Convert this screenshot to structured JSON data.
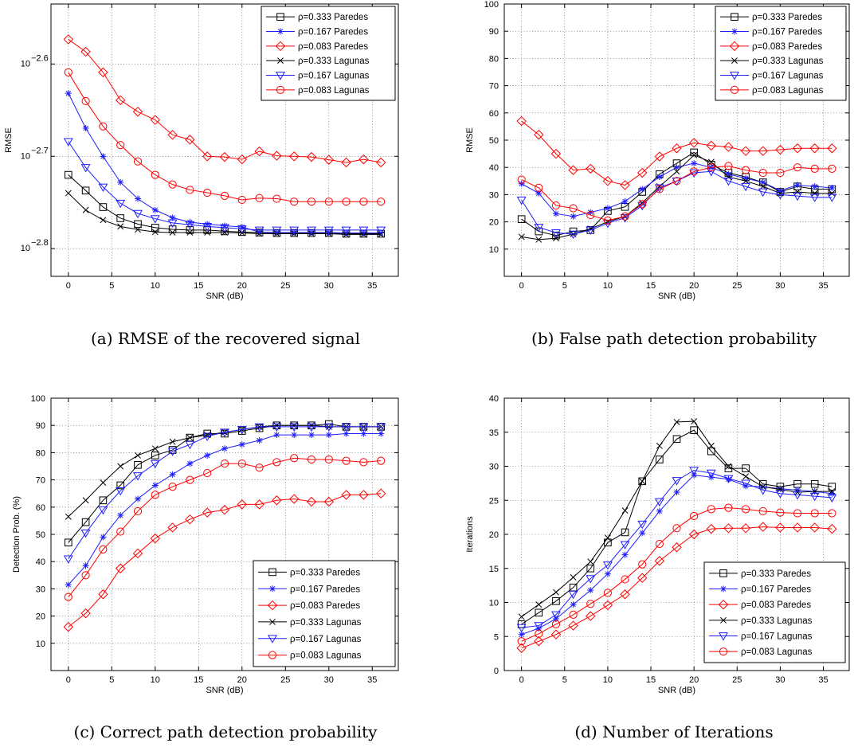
{
  "chart_data": [
    {
      "type": "line",
      "caption": "(a) RMSE of the recovered signal",
      "xlabel": "SNR (dB)",
      "ylabel": "RMSE",
      "yscale": "log",
      "xlim": [
        -2,
        38
      ],
      "ylim_exp": [
        -2.83,
        -2.535
      ],
      "xticks": [
        0,
        5,
        10,
        15,
        20,
        25,
        30,
        35
      ],
      "yticks_exp": [
        -2.8,
        -2.7,
        -2.6
      ],
      "ytick_base": "10",
      "ytick_labels": [
        "−2.8",
        "−2.7",
        "−2.6"
      ],
      "grid": true,
      "legend_position": "top-right",
      "x": [
        0,
        2,
        4,
        6,
        8,
        10,
        12,
        14,
        16,
        18,
        20,
        22,
        24,
        26,
        28,
        30,
        32,
        34,
        36
      ],
      "series": [
        {
          "name": "ρ=0.333 Paredes",
          "color": "#000000",
          "marker": "square",
          "values": [
            0.001905,
            0.001832,
            0.001758,
            0.00171,
            0.001685,
            0.00167,
            0.001663,
            0.00166,
            0.00166,
            0.001655,
            0.001652,
            0.00165,
            0.001648,
            0.001648,
            0.001648,
            0.001648,
            0.001645,
            0.001645,
            0.001645
          ]
        },
        {
          "name": "ρ=0.167 Paredes",
          "color": "#1f1fff",
          "marker": "star",
          "values": [
            0.002335,
            0.00214,
            0.001995,
            0.00187,
            0.001795,
            0.001745,
            0.001712,
            0.001693,
            0.001685,
            0.001678,
            0.001673,
            0.001652,
            0.00165,
            0.00165,
            0.00165,
            0.00165,
            0.001648,
            0.001648,
            0.001648
          ]
        },
        {
          "name": "ρ=0.083 Paredes",
          "color": "#ff0000",
          "marker": "diamond",
          "values": [
            0.002671,
            0.00259,
            0.00246,
            0.002295,
            0.00223,
            0.002185,
            0.002105,
            0.00208,
            0.001995,
            0.001992,
            0.00198,
            0.00202,
            0.001998,
            0.001995,
            0.001992,
            0.001978,
            0.001965,
            0.00198,
            0.001965
          ]
        },
        {
          "name": "ρ=0.333 Lagunas",
          "color": "#000000",
          "marker": "x",
          "values": [
            0.00182,
            0.001745,
            0.001702,
            0.001675,
            0.001662,
            0.001652,
            0.00165,
            0.00165,
            0.00165,
            0.00165,
            0.001648,
            0.001645,
            0.001645,
            0.001645,
            0.001645,
            0.001645,
            0.001642,
            0.001642,
            0.001642
          ]
        },
        {
          "name": "ρ=0.167 Lagunas",
          "color": "#1f1fff",
          "marker": "triangle",
          "values": [
            0.00207,
            0.00194,
            0.001848,
            0.001775,
            0.00173,
            0.001708,
            0.00169,
            0.001682,
            0.001675,
            0.00167,
            0.001665,
            0.00166,
            0.00166,
            0.00166,
            0.00166,
            0.00166,
            0.00166,
            0.00166,
            0.00166
          ]
        },
        {
          "name": "ρ=0.083 Lagunas",
          "color": "#ff0000",
          "marker": "circle",
          "values": [
            0.00246,
            0.00229,
            0.00215,
            0.002052,
            0.00197,
            0.001905,
            0.00186,
            0.001835,
            0.001822,
            0.001808,
            0.00179,
            0.001798,
            0.001795,
            0.001782,
            0.001782,
            0.001782,
            0.001782,
            0.001782,
            0.001782
          ]
        }
      ]
    },
    {
      "type": "line",
      "caption": "(b) False path detection probability",
      "xlabel": "SNR (dB)",
      "ylabel": "RMSE",
      "yscale": "linear",
      "xlim": [
        -2,
        38
      ],
      "ylim": [
        0,
        100
      ],
      "xticks": [
        0,
        5,
        10,
        15,
        20,
        25,
        30,
        35
      ],
      "yticks": [
        10,
        20,
        30,
        40,
        50,
        60,
        70,
        80,
        90,
        100
      ],
      "grid": true,
      "legend_position": "top-right",
      "x": [
        0,
        2,
        4,
        6,
        8,
        10,
        12,
        14,
        16,
        18,
        20,
        22,
        24,
        26,
        28,
        30,
        32,
        34,
        36
      ],
      "series": [
        {
          "name": "ρ=0.333 Paredes",
          "color": "#000000",
          "marker": "square",
          "values": [
            21,
            16.5,
            15,
            16.5,
            17,
            24,
            25.5,
            31,
            37.5,
            41.5,
            45.5,
            41,
            38,
            36.5,
            34.5,
            31,
            33,
            32,
            32
          ]
        },
        {
          "name": "ρ=0.167 Paredes",
          "color": "#1f1fff",
          "marker": "star",
          "values": [
            34,
            30.5,
            23,
            22,
            23.5,
            25,
            27.5,
            32,
            36.5,
            40,
            41.5,
            40,
            37.5,
            36,
            34.5,
            31.5,
            33.5,
            33,
            32.5
          ]
        },
        {
          "name": "ρ=0.083 Paredes",
          "color": "#ff0000",
          "marker": "diamond",
          "values": [
            57,
            52,
            45,
            39,
            39.5,
            35,
            33.5,
            38,
            44,
            47,
            49,
            48,
            47.5,
            46,
            46,
            46.5,
            47,
            47,
            47
          ]
        },
        {
          "name": "ρ=0.333 Lagunas",
          "color": "#000000",
          "marker": "x",
          "values": [
            14.5,
            13.5,
            14,
            15.5,
            17.5,
            20,
            22,
            27,
            33,
            38.5,
            44.5,
            42,
            36.5,
            35,
            33,
            30.5,
            31,
            30.5,
            30.5
          ]
        },
        {
          "name": "ρ=0.167 Lagunas",
          "color": "#1f1fff",
          "marker": "triangle",
          "values": [
            28,
            18,
            16,
            15.5,
            17,
            19.5,
            21.5,
            26,
            32.5,
            35,
            38,
            38.5,
            35,
            33,
            31,
            30,
            29.5,
            29,
            29
          ]
        },
        {
          "name": "ρ=0.083 Lagunas",
          "color": "#ff0000",
          "marker": "circle",
          "values": [
            35.5,
            32.5,
            26,
            25,
            22.5,
            20.5,
            22,
            26.5,
            32,
            35,
            38.5,
            40,
            40.5,
            39,
            38,
            38,
            40,
            39.5,
            39.5
          ]
        }
      ]
    },
    {
      "type": "line",
      "caption": "(c) Correct path detection probability",
      "xlabel": "SNR (dB)",
      "ylabel": "Detection Prob. (%)",
      "yscale": "linear",
      "xlim": [
        -2,
        38
      ],
      "ylim": [
        0,
        100
      ],
      "xticks": [
        0,
        5,
        10,
        15,
        20,
        25,
        30,
        35
      ],
      "yticks": [
        10,
        20,
        30,
        40,
        50,
        60,
        70,
        80,
        90,
        100
      ],
      "grid": true,
      "legend_position": "bottom-right",
      "x": [
        0,
        2,
        4,
        6,
        8,
        10,
        12,
        14,
        16,
        18,
        20,
        22,
        24,
        26,
        28,
        30,
        32,
        34,
        36
      ],
      "series": [
        {
          "name": "ρ=0.333 Paredes",
          "color": "#000000",
          "marker": "square",
          "values": [
            47,
            54.5,
            62.5,
            68,
            75.5,
            79,
            81,
            85.5,
            87,
            87,
            88,
            89,
            90,
            90,
            90,
            90.5,
            89.5,
            89.5,
            89.5
          ]
        },
        {
          "name": "ρ=0.167 Paredes",
          "color": "#1f1fff",
          "marker": "star",
          "values": [
            31.5,
            38.5,
            49,
            57,
            63,
            68,
            72,
            76,
            79,
            81.5,
            83,
            84.5,
            86.5,
            86.5,
            86.5,
            86.5,
            87,
            87,
            87
          ]
        },
        {
          "name": "ρ=0.083 Paredes",
          "color": "#ff0000",
          "marker": "diamond",
          "values": [
            16,
            21,
            28,
            37.5,
            43,
            48.5,
            52.5,
            55.5,
            58,
            59,
            61,
            61,
            62.5,
            63,
            62,
            62,
            64.5,
            64.5,
            65
          ]
        },
        {
          "name": "ρ=0.333 Lagunas",
          "color": "#000000",
          "marker": "x",
          "values": [
            56.5,
            62.5,
            69,
            75,
            79,
            81.5,
            84,
            85.5,
            86.5,
            87.5,
            88.5,
            89.5,
            90,
            90,
            90,
            89.5,
            89.5,
            89.5,
            89.5
          ]
        },
        {
          "name": "ρ=0.167 Lagunas",
          "color": "#1f1fff",
          "marker": "triangle",
          "values": [
            41,
            50.5,
            59,
            66,
            71.5,
            76,
            80.5,
            83,
            86,
            87.5,
            88.5,
            89.5,
            89.5,
            89.5,
            89.5,
            89.5,
            89.5,
            89.5,
            89.5
          ]
        },
        {
          "name": "ρ=0.083 Lagunas",
          "color": "#ff0000",
          "marker": "circle",
          "values": [
            27,
            35,
            44.5,
            51,
            58.5,
            64.5,
            67.5,
            70,
            72.5,
            76,
            76,
            74.5,
            76.5,
            78,
            77.5,
            77.5,
            77,
            76.5,
            77
          ]
        }
      ]
    },
    {
      "type": "line",
      "caption": "(d) Number of Iterations",
      "xlabel": "SNR (dB)",
      "ylabel": "Iterations",
      "yscale": "linear",
      "xlim": [
        -2,
        38
      ],
      "ylim": [
        0,
        40
      ],
      "xticks": [
        0,
        5,
        10,
        15,
        20,
        25,
        30,
        35
      ],
      "yticks": [
        0,
        5,
        10,
        15,
        20,
        25,
        30,
        35,
        40
      ],
      "grid": true,
      "legend_position": "bottom-right",
      "x": [
        0,
        2,
        4,
        6,
        8,
        10,
        12,
        14,
        16,
        18,
        20,
        22,
        24,
        26,
        28,
        30,
        32,
        34,
        36
      ],
      "series": [
        {
          "name": "ρ=0.333 Paredes",
          "color": "#000000",
          "marker": "square",
          "values": [
            6.8,
            8.5,
            10.2,
            12.2,
            15,
            18.8,
            20.3,
            27.8,
            31,
            34,
            35.3,
            32.2,
            29.7,
            29.7,
            27.4,
            27,
            27.4,
            27.4,
            27
          ]
        },
        {
          "name": "ρ=0.167 Paredes",
          "color": "#1f1fff",
          "marker": "star",
          "values": [
            5.3,
            6.2,
            7.6,
            9.7,
            11.8,
            14.2,
            17,
            20.2,
            23.4,
            26.2,
            28.7,
            28.4,
            28.1,
            27.1,
            27,
            26.7,
            26.5,
            26.3,
            26
          ]
        },
        {
          "name": "ρ=0.083 Paredes",
          "color": "#ff0000",
          "marker": "diamond",
          "values": [
            3.3,
            4.3,
            5.3,
            6.6,
            8,
            9.6,
            11.2,
            13.6,
            16.1,
            18.1,
            20,
            20.8,
            20.9,
            20.9,
            21.1,
            21,
            21,
            21,
            20.8
          ]
        },
        {
          "name": "ρ=0.333 Lagunas",
          "color": "#000000",
          "marker": "x",
          "values": [
            7.9,
            9.7,
            11.5,
            13.7,
            16,
            19.5,
            23.5,
            27.8,
            33,
            36.5,
            36.6,
            33,
            30,
            28.5,
            27,
            26.6,
            26.2,
            26.3,
            26.3
          ]
        },
        {
          "name": "ρ=0.167 Lagunas",
          "color": "#1f1fff",
          "marker": "triangle",
          "values": [
            6.3,
            6.6,
            8.2,
            11.2,
            13.5,
            15.5,
            18.5,
            21.5,
            24.8,
            27.9,
            29.4,
            29,
            28.2,
            27.5,
            26.5,
            26,
            25.8,
            25.6,
            25.4
          ]
        },
        {
          "name": "ρ=0.083 Lagunas",
          "color": "#ff0000",
          "marker": "circle",
          "values": [
            4.3,
            5.4,
            6.8,
            8.2,
            9.8,
            11.4,
            13.4,
            15.6,
            18.6,
            20.9,
            22.7,
            23.7,
            23.9,
            23.7,
            23.4,
            23.2,
            23.1,
            23.1,
            23.1
          ]
        }
      ]
    }
  ]
}
